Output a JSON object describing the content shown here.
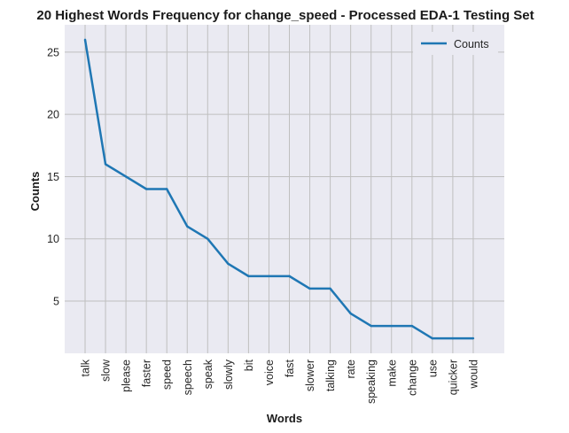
{
  "chart_data": {
    "type": "line",
    "title": "20 Highest Words Frequency for change_speed - Processed EDA-1 Testing Set",
    "xlabel": "Words",
    "ylabel": "Counts",
    "categories": [
      "talk",
      "slow",
      "please",
      "faster",
      "speed",
      "speech",
      "speak",
      "slowly",
      "bit",
      "voice",
      "fast",
      "slower",
      "talking",
      "rate",
      "speaking",
      "make",
      "change",
      "use",
      "quicker",
      "would"
    ],
    "series": [
      {
        "name": "Counts",
        "values": [
          26,
          16,
          15,
          14,
          14,
          11,
          10,
          8,
          7,
          7,
          7,
          6,
          6,
          4,
          3,
          3,
          3,
          2,
          2,
          2
        ]
      }
    ],
    "yticks": [
      5,
      10,
      15,
      20,
      25
    ],
    "ylim": [
      0.8,
      27.2
    ],
    "grid": true,
    "legend_position": "top-right",
    "colors": {
      "line": "#1f77b4",
      "background": "#eaeaf2",
      "grid": "#bfbfbf"
    }
  }
}
